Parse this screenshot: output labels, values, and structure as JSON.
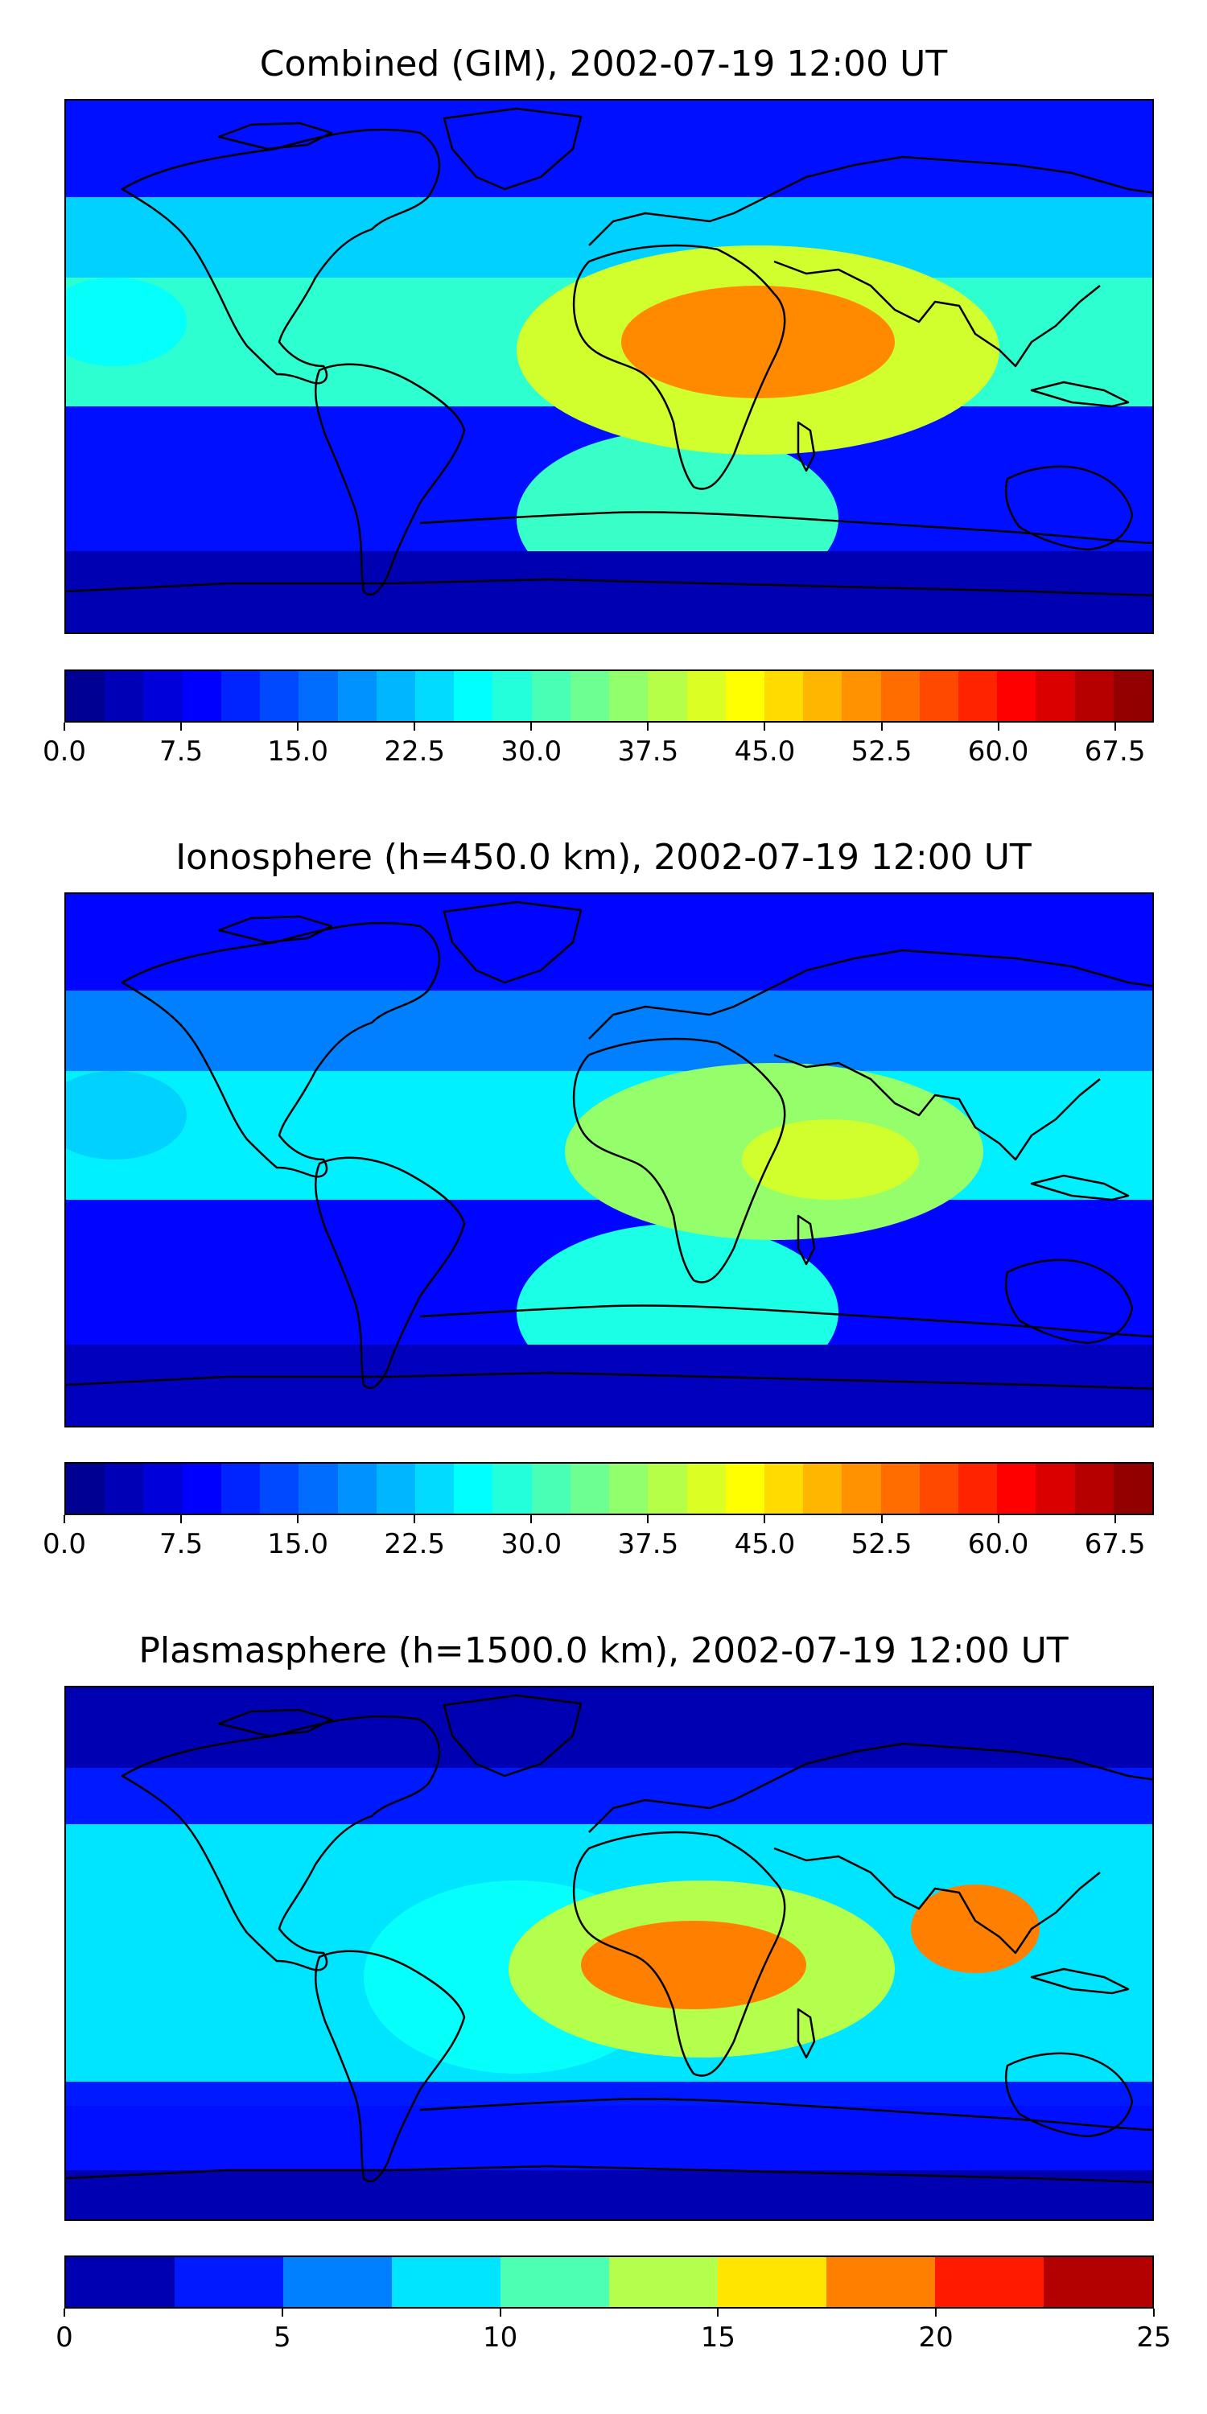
{
  "panels": [
    {
      "title": "Combined (GIM), 2002-07-19 12:00 UT",
      "colorbar": {
        "vmin": 0,
        "vmax": 70,
        "levels": 28,
        "tick_labels": [
          "0.0",
          "7.5",
          "15.0",
          "22.5",
          "30.0",
          "37.5",
          "45.0",
          "52.5",
          "60.0",
          "67.5"
        ],
        "tick_values": [
          0,
          7.5,
          15,
          22.5,
          30,
          37.5,
          45,
          52.5,
          60,
          67.5
        ]
      },
      "features": [
        {
          "name": "background",
          "level": 0.14
        },
        {
          "name": "northern-band",
          "level": 0.33
        },
        {
          "name": "tropical-belt",
          "level": 0.42
        },
        {
          "name": "south-atlantic-tongue",
          "level": 0.43
        },
        {
          "name": "africa-core",
          "level": 0.58
        },
        {
          "name": "africa-peak",
          "level": 0.74
        },
        {
          "name": "pacific-east-patch",
          "level": 0.38
        },
        {
          "name": "southern-low",
          "level": 0.05
        }
      ]
    },
    {
      "title": "Ionosphere  (h=450.0 km), 2002-07-19 12:00 UT",
      "colorbar": {
        "vmin": 0,
        "vmax": 70,
        "levels": 28,
        "tick_labels": [
          "0.0",
          "7.5",
          "15.0",
          "22.5",
          "30.0",
          "37.5",
          "45.0",
          "52.5",
          "60.0",
          "67.5"
        ],
        "tick_values": [
          0,
          7.5,
          15,
          22.5,
          30,
          37.5,
          45,
          52.5,
          60,
          67.5
        ]
      },
      "features": [
        {
          "name": "background",
          "level": 0.13
        },
        {
          "name": "northern-band",
          "level": 0.25
        },
        {
          "name": "tropical-belt",
          "level": 0.36
        },
        {
          "name": "south-atlantic-tongue",
          "level": 0.4
        },
        {
          "name": "africa-core",
          "level": 0.52
        },
        {
          "name": "africa-peak",
          "level": 0.58
        },
        {
          "name": "pacific-east-patch",
          "level": 0.33
        },
        {
          "name": "southern-low",
          "level": 0.06
        }
      ]
    },
    {
      "title": "Plasmasphere (h=1500.0 km), 2002-07-19 12:00 UT",
      "colorbar": {
        "vmin": 0,
        "vmax": 25,
        "levels": 10,
        "tick_labels": [
          "0",
          "5",
          "10",
          "15",
          "20",
          "25"
        ],
        "tick_values": [
          0,
          5,
          10,
          15,
          20,
          25
        ]
      },
      "features": [
        {
          "name": "background",
          "level": 0.05
        },
        {
          "name": "northern-band",
          "level": 0.15
        },
        {
          "name": "tropical-belt",
          "level": 0.35
        },
        {
          "name": "south-atlantic-tongue",
          "level": 0.38
        },
        {
          "name": "africa-core",
          "level": 0.55
        },
        {
          "name": "africa-peak",
          "level": 0.75
        },
        {
          "name": "se-asia-peak",
          "level": 0.75
        },
        {
          "name": "southern-low",
          "level": 0.14
        }
      ]
    }
  ]
}
